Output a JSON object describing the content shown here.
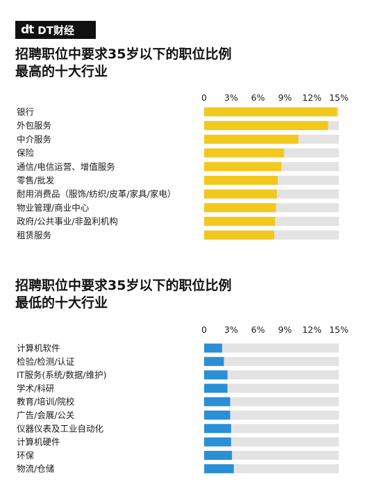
{
  "brand": {
    "mark": "dt",
    "name": "DT财经"
  },
  "chart_data": [
    {
      "type": "bar",
      "orientation": "horizontal",
      "title": "招聘职位中要求35岁以下的职位比例\n最高的十大行业",
      "title_lines": [
        "招聘职位中要求35岁以下的职位比例",
        "最高的十大行业"
      ],
      "ticks": [
        "0",
        "3%",
        "6%",
        "9%",
        "12%",
        "15%"
      ],
      "xlim": [
        0,
        15
      ],
      "bar_color": "#f2c81c",
      "track_color": "#e3e3e3",
      "categories": [
        "银行",
        "外包服务",
        "中介服务",
        "保险",
        "通信/电信运营、增值服务",
        "零售/批发",
        "耐用消费品（服饰/纺织/皮革/家具/家电）",
        "物业管理/商业中心",
        "政府/公共事业/非盈利机构",
        "租赁服务"
      ],
      "values": [
        14.8,
        13.8,
        10.5,
        8.9,
        8.6,
        8.2,
        8.1,
        8.0,
        7.9,
        7.8
      ]
    },
    {
      "type": "bar",
      "orientation": "horizontal",
      "title": "招聘职位中要求35岁以下的职位比例\n最低的十大行业",
      "title_lines": [
        "招聘职位中要求35岁以下的职位比例",
        "最低的十大行业"
      ],
      "ticks": [
        "0",
        "3%",
        "6%",
        "9%",
        "12%",
        "15%"
      ],
      "xlim": [
        0,
        15
      ],
      "bar_color": "#2b8fd6",
      "track_color": "#e3e3e3",
      "categories": [
        "计算机软件",
        "检验/检测/认证",
        "IT服务(系统/数据/维护)",
        "学术/科研",
        "教育/培训/院校",
        "广告/会展/公关",
        "仪器仪表及工业自动化",
        "计算机硬件",
        "环保",
        "物流/仓储"
      ],
      "values": [
        2.0,
        2.2,
        2.6,
        2.6,
        2.9,
        2.9,
        3.0,
        3.0,
        3.1,
        3.3
      ]
    }
  ]
}
